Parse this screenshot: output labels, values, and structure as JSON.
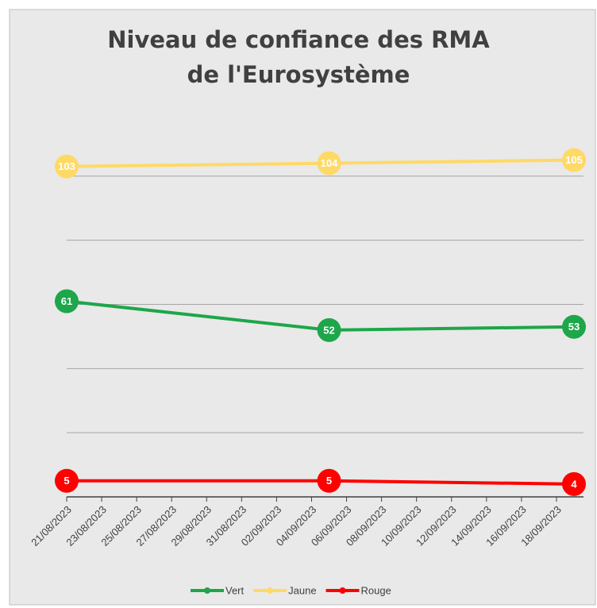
{
  "chart_data": {
    "type": "line",
    "title": "Niveau de confiance des RMA de l'Eurosystème",
    "x": [
      "21/08/2023",
      "05/09/2023",
      "19/09/2023"
    ],
    "xlim": [
      "21/08/2023",
      "19/09/2023"
    ],
    "xticks": [
      "21/08/2023",
      "23/08/2023",
      "25/08/2023",
      "27/08/2023",
      "29/08/2023",
      "31/08/2023",
      "02/09/2023",
      "04/09/2023",
      "06/09/2023",
      "08/09/2023",
      "10/09/2023",
      "12/09/2023",
      "14/09/2023",
      "16/09/2023",
      "18/09/2023"
    ],
    "ylim": [
      0,
      120
    ],
    "yticks": [
      0,
      20,
      40,
      60,
      80,
      100
    ],
    "grid": true,
    "series": [
      {
        "name": "Vert",
        "color": "#1ea64a",
        "values": [
          61,
          52,
          53
        ]
      },
      {
        "name": "Jaune",
        "color": "#ffd966",
        "values": [
          103,
          104,
          105
        ]
      },
      {
        "name": "Rouge",
        "color": "#ff0000",
        "values": [
          5,
          5,
          4
        ]
      }
    ]
  }
}
